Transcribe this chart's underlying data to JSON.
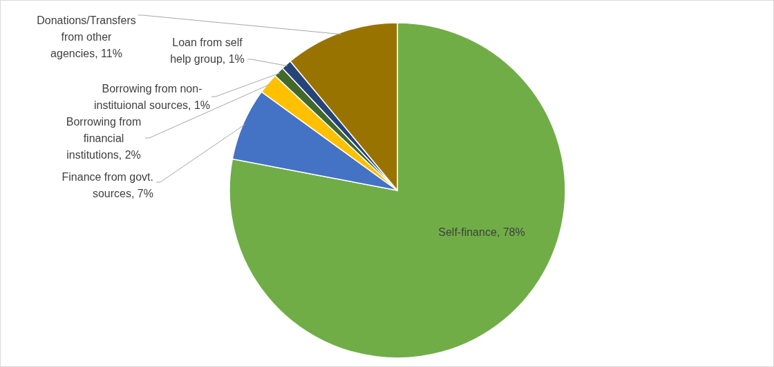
{
  "chart_data": {
    "type": "pie",
    "categories": [
      "Self-finance",
      "Finance from govt. sources",
      "Borrowing from financial institutions",
      "Borrowing from non-instituional sources",
      "Loan from self help group",
      "Donations/Transfers from other agencies"
    ],
    "values": [
      78,
      7,
      2,
      1,
      1,
      11
    ],
    "value_labels": [
      "78%",
      "7%",
      "2%",
      "1%",
      "1%",
      "11%"
    ],
    "colors": [
      "#70ad47",
      "#4472c4",
      "#ffc000",
      "#43682b",
      "#264478",
      "#997300"
    ]
  }
}
